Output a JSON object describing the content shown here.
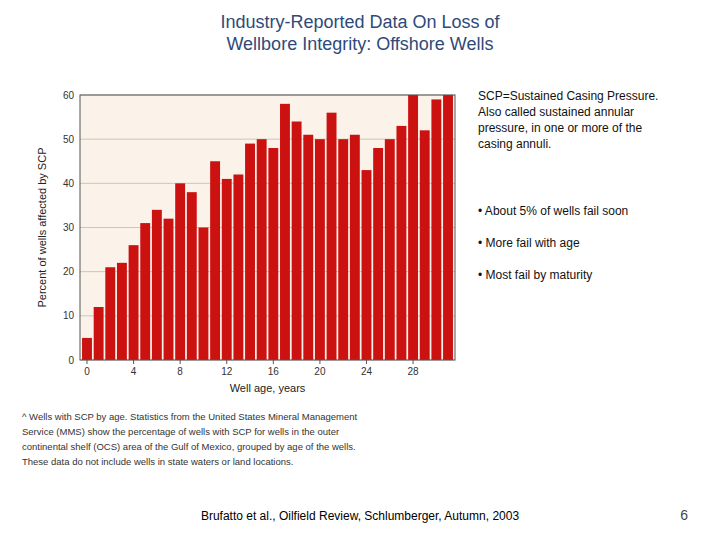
{
  "chart_data": {
    "type": "bar",
    "title": "Industry-Reported Data On Loss of\nWellbore Integrity:  Offshore Wells",
    "x_label": "Well age, years",
    "y_label": "Percent of wells affected by SCP",
    "x": [
      0,
      1,
      2,
      3,
      4,
      5,
      6,
      7,
      8,
      9,
      10,
      11,
      12,
      13,
      14,
      15,
      16,
      17,
      18,
      19,
      20,
      21,
      22,
      23,
      24,
      25,
      26,
      27,
      28,
      29,
      30,
      31
    ],
    "values": [
      5,
      12,
      21,
      22,
      26,
      31,
      34,
      32,
      40,
      38,
      30,
      45,
      41,
      42,
      49,
      50,
      48,
      58,
      54,
      51,
      50,
      56,
      50,
      51,
      43,
      48,
      50,
      53,
      60,
      52,
      59,
      60
    ],
    "color": "#CC1111",
    "xlim": [
      -0.6,
      31.6
    ],
    "xticks": [
      0,
      4,
      8,
      12,
      16,
      20,
      24,
      28
    ],
    "ylim": [
      0,
      60
    ],
    "yticks": [
      0,
      10,
      20,
      30,
      40,
      50,
      60
    ],
    "grid": true,
    "annotations": {
      "description": "SCP=Sustained Casing Pressure.\nAlso called sustained annular\npressure, in one or more of the\ncasing annuli.",
      "bullets": [
        "• About 5% of wells fail soon",
        "• More fail with age",
        "• Most fail by maturity"
      ],
      "footnote": [
        "^ Wells with SCP by age. Statistics from the United States Mineral Management",
        "Service (MMS) show the percentage of wells with SCP for wells in the outer",
        "continental shelf (OCS) area of the Gulf of Mexico, grouped by age of the wells.",
        "These data do not include wells in state waters or land locations."
      ],
      "citation": "Brufatto et al., Oilfield Review, Schlumberger, Autumn, 2003",
      "page_number": "6"
    }
  }
}
